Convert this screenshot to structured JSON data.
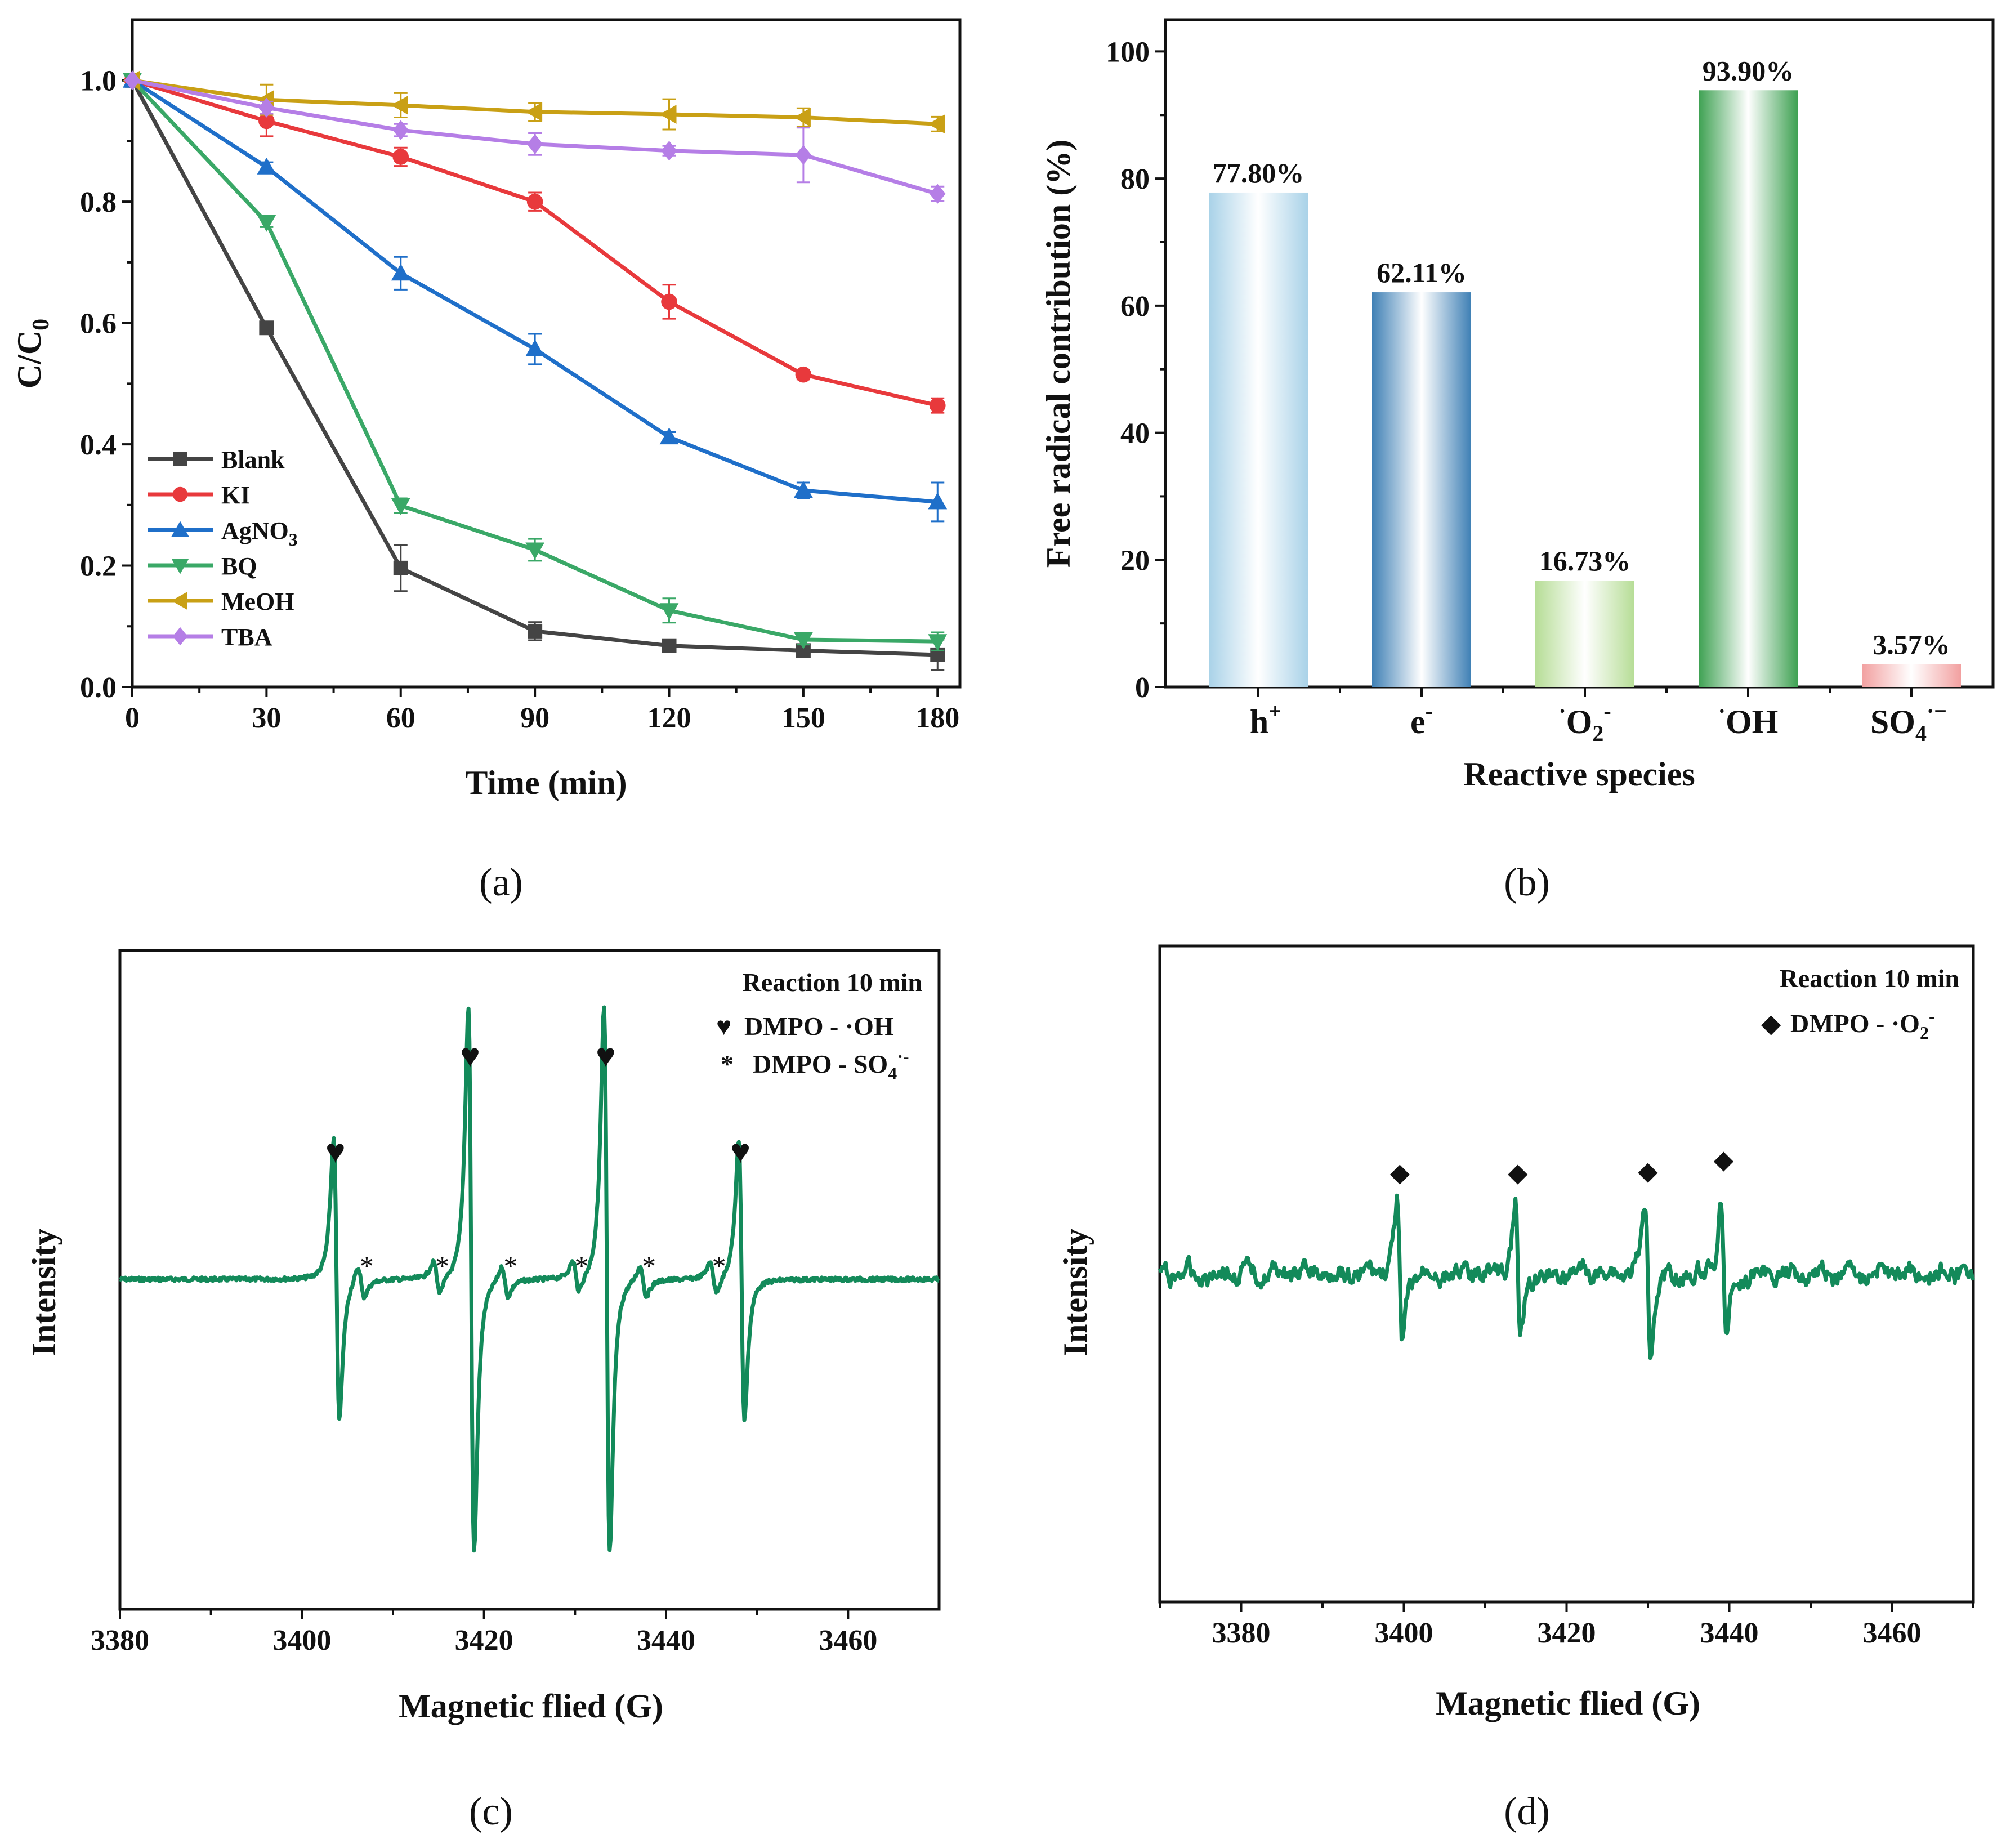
{
  "chart_data": [
    {
      "id": "a",
      "type": "line",
      "panel_label": "(a)",
      "xlabel": "Time (min)",
      "ylabel": "C/C0",
      "xlim": [
        0,
        185
      ],
      "ylim": [
        0,
        1.1
      ],
      "xticks": [
        "0",
        "30",
        "60",
        "90",
        "120",
        "150",
        "180"
      ],
      "yticks": [
        "0.0",
        "0.2",
        "0.4",
        "0.6",
        "0.8",
        "1.0"
      ],
      "x": [
        0,
        30,
        60,
        90,
        120,
        150,
        180
      ],
      "legend_position": "bottom-left",
      "series": [
        {
          "name": "Blank",
          "color": "#444444",
          "marker": "square",
          "values": [
            1.0,
            0.592,
            0.196,
            0.092,
            0.068,
            0.06,
            0.053
          ],
          "errors": [
            0,
            0.01,
            0.038,
            0.015,
            0.008,
            0.008,
            0.025
          ]
        },
        {
          "name": "KI",
          "color": "#e8393c",
          "marker": "circle",
          "values": [
            1.0,
            0.933,
            0.874,
            0.8,
            0.635,
            0.515,
            0.464
          ],
          "errors": [
            0,
            0.025,
            0.015,
            0.015,
            0.028,
            0.008,
            0.012
          ]
        },
        {
          "name": "AgNO3",
          "color": "#1f6fc9",
          "marker": "triangle-up",
          "values": [
            1.0,
            0.857,
            0.682,
            0.557,
            0.412,
            0.324,
            0.305
          ],
          "errors": [
            0,
            0.008,
            0.027,
            0.025,
            0.008,
            0.013,
            0.032
          ]
        },
        {
          "name": "BQ",
          "color": "#3aa867",
          "marker": "triangle-down",
          "values": [
            1.0,
            0.766,
            0.299,
            0.226,
            0.126,
            0.078,
            0.075
          ],
          "errors": [
            0,
            0.008,
            0.012,
            0.018,
            0.02,
            0.008,
            0.015
          ]
        },
        {
          "name": "MeOH",
          "color": "#c9a015",
          "marker": "triangle-left",
          "values": [
            1.0,
            0.968,
            0.959,
            0.948,
            0.944,
            0.939,
            0.928
          ],
          "errors": [
            0,
            0.025,
            0.02,
            0.015,
            0.025,
            0.015,
            0.012
          ]
        },
        {
          "name": "TBA",
          "color": "#b57ee6",
          "marker": "diamond",
          "values": [
            1.0,
            0.955,
            0.918,
            0.895,
            0.884,
            0.877,
            0.813
          ],
          "errors": [
            0,
            0.01,
            0.01,
            0.018,
            0.008,
            0.045,
            0.012
          ]
        }
      ]
    },
    {
      "id": "b",
      "type": "bar",
      "panel_label": "(b)",
      "xlabel": "Reactive species",
      "ylabel": "Free radical contribution (%)",
      "ylim": [
        0,
        105
      ],
      "yticks": [
        "0",
        "20",
        "40",
        "60",
        "80",
        "100"
      ],
      "categories": [
        "h+",
        "e-",
        "·O2-",
        "·OH",
        "SO4·-"
      ],
      "values": [
        77.8,
        62.11,
        16.73,
        93.9,
        3.57
      ],
      "labels": [
        "77.80%",
        "62.11%",
        "16.73%",
        "93.90%",
        "3.57%"
      ],
      "bar_colors": [
        {
          "edge": "#a9d2e8",
          "center": "#ffffff"
        },
        {
          "edge": "#3f80b5",
          "center": "#ffffff"
        },
        {
          "edge": "#b6dd96",
          "center": "#ffffff"
        },
        {
          "edge": "#3ea152",
          "center": "#ffffff"
        },
        {
          "edge": "#f2a0a0",
          "center": "#ffffff"
        }
      ]
    },
    {
      "id": "c",
      "type": "line",
      "panel_label": "(c)",
      "xlabel": "Magnetic flied (G)",
      "ylabel": "Intensity",
      "xlim": [
        3380,
        3470
      ],
      "xticks": [
        "3380",
        "3400",
        "3420",
        "3440",
        "3460"
      ],
      "line_color": "#138a5a",
      "peaks_main": [
        3403.8,
        3418.6,
        3433.5,
        3448.3
      ],
      "peaks_main_amplitude": [
        1.0,
        1.95,
        1.95,
        1.0
      ],
      "peaks_secondary": [
        3406.5,
        3414.8,
        3422.3,
        3430.1,
        3437.5,
        3445.2
      ],
      "annotation_title": "Reaction 10 min",
      "legend_entries": [
        {
          "symbol": "♥",
          "label": "DMPO - ·OH"
        },
        {
          "symbol": "*",
          "label": "DMPO - SO4·-"
        }
      ]
    },
    {
      "id": "d",
      "type": "line",
      "panel_label": "(d)",
      "xlabel": "Magnetic flied (G)",
      "ylabel": "Intensity",
      "xlim": [
        3370,
        3470
      ],
      "xticks": [
        "3380",
        "3400",
        "3420",
        "3440",
        "3460"
      ],
      "line_color": "#138a5a",
      "peaks_main": [
        3399.5,
        3414.0,
        3430.0,
        3439.3
      ],
      "annotation_title": "Reaction 10 min",
      "legend_entries": [
        {
          "symbol": "◆",
          "label": "DMPO - ·O2-"
        }
      ]
    }
  ]
}
